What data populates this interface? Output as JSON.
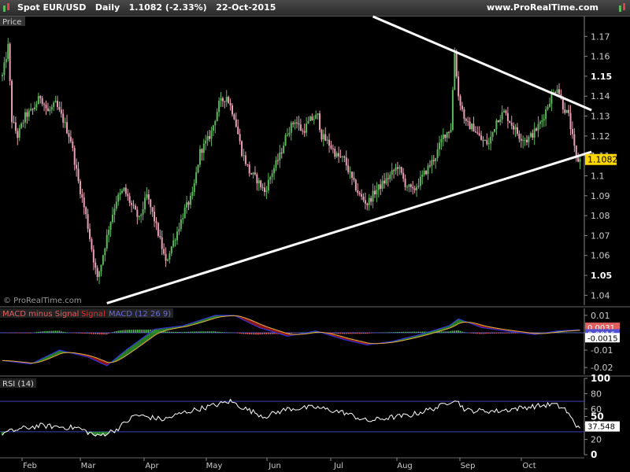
{
  "header": {
    "instrument": "Spot EUR/USD",
    "period": "Daily",
    "last": "1.1082 (-2.33%)",
    "date": "22-Oct-2015",
    "site": "www.ProRealTime.com"
  },
  "colors": {
    "background": "#000000",
    "candle_up": "#5cb85c",
    "candle_down": "#e8a0b4",
    "trendline": "#ffffff",
    "macd_line": "#3030d0",
    "signal_line": "#d02020",
    "macd_hist_pos": "#5ecc5e",
    "macd_hist_neg": "#e86060",
    "rsi_line": "#ffffff",
    "rsi_band": "#4040c0",
    "price_tag": "#ffd700"
  },
  "price_panel": {
    "label": "Price",
    "watermark": "© ProRealTime.com",
    "last_price_tag": "1.1082",
    "ticks": [
      "1.17",
      "1.16",
      "1.15",
      "1.14",
      "1.13",
      "1.12",
      "1.11",
      "1.1",
      "1.09",
      "1.08",
      "1.07",
      "1.06",
      "1.05",
      "1.04"
    ],
    "bold_ticks": [
      "1.15",
      "1.05"
    ]
  },
  "macd_panel": {
    "label_hist": "MACD minus Signal",
    "label_signal": "Signal",
    "label_macd": "MACD (12 26 9)",
    "ticks": [
      "0.01",
      "0",
      "-0.01",
      "-0.02"
    ],
    "tag_signal": "0.0031",
    "tag_macd": "0.0016",
    "tag_hist": "-0.0015"
  },
  "rsi_panel": {
    "label": "RSI (14)",
    "ticks": [
      "100",
      "80",
      "60",
      "40",
      "20",
      "0"
    ],
    "bold_ticks": [
      "100",
      "50",
      "0"
    ],
    "extra_ticks": [
      "50"
    ],
    "tag": "37.548",
    "upper": 70,
    "lower": 30
  },
  "x_axis": {
    "months": [
      "Feb",
      "Mar",
      "Apr",
      "May",
      "Jun",
      "Jul",
      "Aug",
      "Sep",
      "Oct"
    ]
  },
  "chart_data": {
    "type": "candlestick",
    "title": "Spot EUR/USD Daily",
    "ylim": [
      1.035,
      1.18
    ],
    "close_path": [
      [
        0,
        1.15
      ],
      [
        3,
        1.165
      ],
      [
        5,
        1.128
      ],
      [
        8,
        1.12
      ],
      [
        12,
        1.13
      ],
      [
        16,
        1.133
      ],
      [
        20,
        1.14
      ],
      [
        24,
        1.132
      ],
      [
        28,
        1.136
      ],
      [
        32,
        1.128
      ],
      [
        36,
        1.118
      ],
      [
        40,
        1.097
      ],
      [
        44,
        1.08
      ],
      [
        48,
        1.058
      ],
      [
        50,
        1.048
      ],
      [
        52,
        1.056
      ],
      [
        56,
        1.074
      ],
      [
        60,
        1.088
      ],
      [
        64,
        1.093
      ],
      [
        68,
        1.085
      ],
      [
        72,
        1.078
      ],
      [
        76,
        1.09
      ],
      [
        80,
        1.078
      ],
      [
        84,
        1.064
      ],
      [
        86,
        1.056
      ],
      [
        88,
        1.062
      ],
      [
        92,
        1.072
      ],
      [
        96,
        1.083
      ],
      [
        100,
        1.09
      ],
      [
        104,
        1.112
      ],
      [
        108,
        1.118
      ],
      [
        110,
        1.122
      ],
      [
        114,
        1.136
      ],
      [
        118,
        1.14
      ],
      [
        122,
        1.13
      ],
      [
        126,
        1.112
      ],
      [
        130,
        1.102
      ],
      [
        134,
        1.098
      ],
      [
        138,
        1.092
      ],
      [
        142,
        1.102
      ],
      [
        146,
        1.11
      ],
      [
        150,
        1.122
      ],
      [
        154,
        1.128
      ],
      [
        158,
        1.122
      ],
      [
        162,
        1.128
      ],
      [
        166,
        1.13
      ],
      [
        168,
        1.12
      ],
      [
        172,
        1.116
      ],
      [
        176,
        1.11
      ],
      [
        180,
        1.108
      ],
      [
        184,
        1.098
      ],
      [
        188,
        1.09
      ],
      [
        192,
        1.086
      ],
      [
        196,
        1.092
      ],
      [
        200,
        1.096
      ],
      [
        204,
        1.1
      ],
      [
        208,
        1.105
      ],
      [
        212,
        1.096
      ],
      [
        216,
        1.092
      ],
      [
        220,
        1.098
      ],
      [
        224,
        1.104
      ],
      [
        228,
        1.11
      ],
      [
        232,
        1.12
      ],
      [
        236,
        1.124
      ],
      [
        238,
        1.162
      ],
      [
        240,
        1.14
      ],
      [
        244,
        1.126
      ],
      [
        248,
        1.124
      ],
      [
        252,
        1.118
      ],
      [
        256,
        1.116
      ],
      [
        260,
        1.128
      ],
      [
        264,
        1.132
      ],
      [
        268,
        1.126
      ],
      [
        272,
        1.12
      ],
      [
        276,
        1.118
      ],
      [
        280,
        1.122
      ],
      [
        284,
        1.128
      ],
      [
        288,
        1.138
      ],
      [
        292,
        1.145
      ],
      [
        295,
        1.135
      ],
      [
        298,
        1.13
      ],
      [
        302,
        1.108
      ]
    ],
    "trendlines": [
      {
        "from": [
          55,
          1.036
        ],
        "to": [
          310,
          1.112
        ]
      },
      {
        "from": [
          195,
          1.18
        ],
        "to": [
          310,
          1.133
        ]
      }
    ],
    "rsi_path": [
      [
        0,
        28
      ],
      [
        10,
        34
      ],
      [
        20,
        38
      ],
      [
        40,
        35
      ],
      [
        50,
        24
      ],
      [
        60,
        33
      ],
      [
        70,
        52
      ],
      [
        85,
        46
      ],
      [
        95,
        55
      ],
      [
        112,
        65
      ],
      [
        120,
        70
      ],
      [
        128,
        60
      ],
      [
        138,
        50
      ],
      [
        150,
        60
      ],
      [
        165,
        62
      ],
      [
        180,
        55
      ],
      [
        192,
        44
      ],
      [
        202,
        48
      ],
      [
        215,
        52
      ],
      [
        230,
        63
      ],
      [
        238,
        73
      ],
      [
        244,
        58
      ],
      [
        260,
        57
      ],
      [
        275,
        62
      ],
      [
        290,
        66
      ],
      [
        296,
        60
      ],
      [
        302,
        38
      ]
    ],
    "macd_path": [
      [
        0,
        -0.016
      ],
      [
        15,
        -0.018
      ],
      [
        30,
        -0.01
      ],
      [
        45,
        -0.014
      ],
      [
        55,
        -0.019
      ],
      [
        65,
        -0.01
      ],
      [
        80,
        0.002
      ],
      [
        95,
        0.004
      ],
      [
        112,
        0.01
      ],
      [
        122,
        0.01
      ],
      [
        135,
        0.003
      ],
      [
        150,
        -0.002
      ],
      [
        165,
        0.001
      ],
      [
        180,
        -0.004
      ],
      [
        192,
        -0.007
      ],
      [
        205,
        -0.005
      ],
      [
        220,
        -0.001
      ],
      [
        235,
        0.004
      ],
      [
        240,
        0.008
      ],
      [
        252,
        0.003
      ],
      [
        265,
        0.001
      ],
      [
        280,
        -0.001
      ],
      [
        292,
        0.001
      ],
      [
        302,
        0.0016
      ]
    ]
  }
}
